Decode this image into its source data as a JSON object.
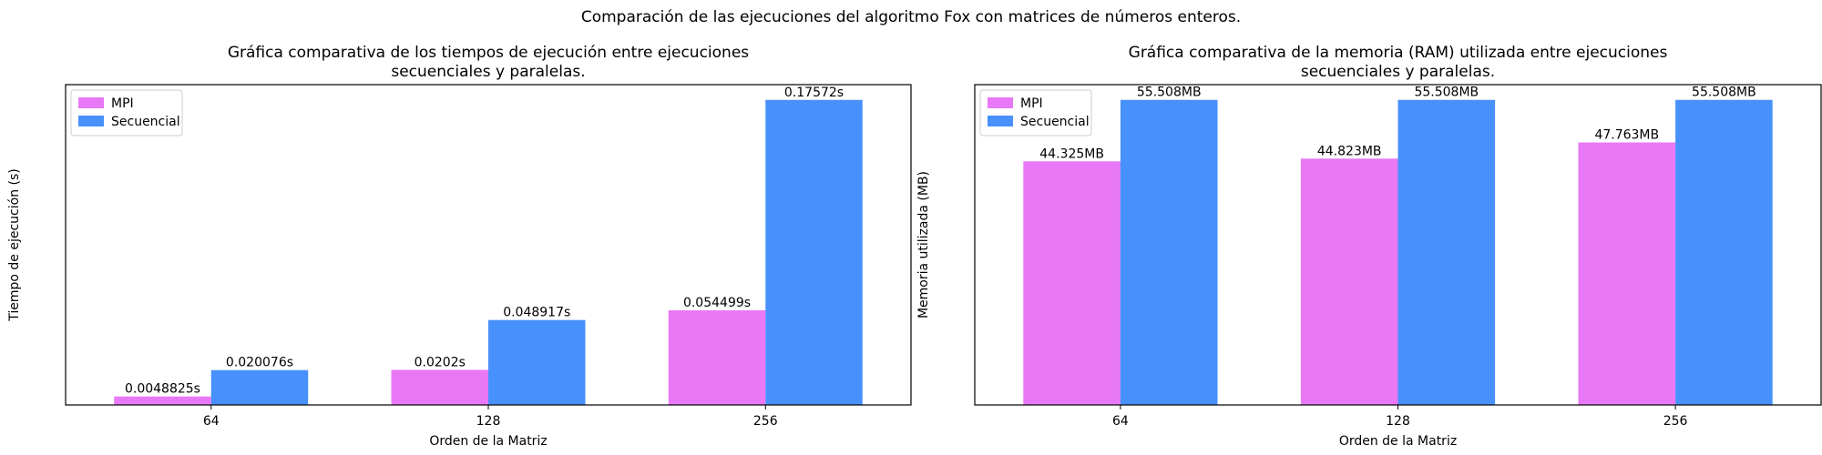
{
  "suptitle": "Comparación de las ejecuciones del algoritmo Fox con matrices de números enteros.",
  "colors": {
    "mpi": "#e878f5",
    "secuencial": "#4891fc"
  },
  "chart_data": [
    {
      "type": "bar",
      "title_lines": [
        "Gráfica comparativa de los tiempos de ejecución entre ejecuciones",
        "secuenciales y paralelas."
      ],
      "xlabel": "Orden de la Matriz",
      "ylabel": "Tiempo de ejecución (s)",
      "categories": [
        "64",
        "128",
        "256"
      ],
      "ylim": [
        0,
        0.1845
      ],
      "legend_position": "top-left",
      "grid": false,
      "series": [
        {
          "name": "MPI",
          "values": [
            0.0048825,
            0.0202,
            0.054499
          ],
          "labels": [
            "0.0048825s",
            "0.0202s",
            "0.054499s"
          ]
        },
        {
          "name": "Secuencial",
          "values": [
            0.020076,
            0.048917,
            0.17572
          ],
          "labels": [
            "0.020076s",
            "0.048917s",
            "0.17572s"
          ]
        }
      ]
    },
    {
      "type": "bar",
      "title_lines": [
        "Gráfica comparativa de la memoria (RAM) utilizada entre ejecuciones",
        "secuenciales y paralelas."
      ],
      "xlabel": "Orden de la Matriz",
      "ylabel": "Memoria utilizada (MB)",
      "categories": [
        "64",
        "128",
        "256"
      ],
      "ylim": [
        0,
        58.28
      ],
      "legend_position": "top-left",
      "grid": false,
      "series": [
        {
          "name": "MPI",
          "values": [
            44.325,
            44.823,
            47.763
          ],
          "labels": [
            "44.325MB",
            "44.823MB",
            "47.763MB"
          ]
        },
        {
          "name": "Secuencial",
          "values": [
            55.508,
            55.508,
            55.508
          ],
          "labels": [
            "55.508MB",
            "55.508MB",
            "55.508MB"
          ]
        }
      ]
    }
  ]
}
